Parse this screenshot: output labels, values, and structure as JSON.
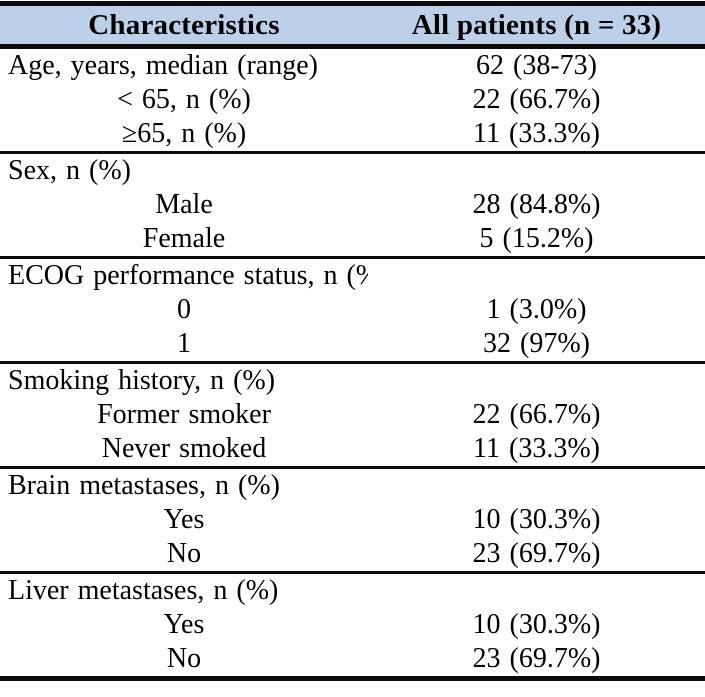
{
  "colors": {
    "header_bg": "#bdd0ea",
    "rule_color": "#0b0b0b",
    "text_color": "#000000",
    "page_bg": "#ffffff"
  },
  "table": {
    "header": {
      "col1": "Characteristics",
      "col2": "All patients (n = 33)"
    },
    "sections": [
      {
        "rows": [
          {
            "label": "Age, years, median (range)",
            "align": "left",
            "value": "62 (38-73)"
          },
          {
            "label": "< 65, n (%)",
            "align": "center",
            "value": "22 (66.7%)"
          },
          {
            "label": "≥65, n (%)",
            "align": "center",
            "value": "11 (33.3%)"
          }
        ]
      },
      {
        "rows": [
          {
            "label": "Sex, n (%)",
            "align": "left",
            "value": ""
          },
          {
            "label": "Male",
            "align": "center",
            "value": "28 (84.8%)"
          },
          {
            "label": "Female",
            "align": "center",
            "value": "5 (15.2%)"
          }
        ]
      },
      {
        "rows": [
          {
            "label": "ECOG performance status, n (%)",
            "align": "left",
            "value": ""
          },
          {
            "label": "0",
            "align": "center",
            "value": "1 (3.0%)"
          },
          {
            "label": "1",
            "align": "center",
            "value": "32 (97%)"
          }
        ]
      },
      {
        "rows": [
          {
            "label": "Smoking history, n (%)",
            "align": "left",
            "value": ""
          },
          {
            "label": "Former smoker",
            "align": "center",
            "value": "22 (66.7%)"
          },
          {
            "label": "Never smoked",
            "align": "center",
            "value": "11 (33.3%)"
          }
        ]
      },
      {
        "rows": [
          {
            "label": "Brain metastases, n (%)",
            "align": "left",
            "value": ""
          },
          {
            "label": "Yes",
            "align": "center",
            "value": "10 (30.3%)"
          },
          {
            "label": "No",
            "align": "center",
            "value": "23 (69.7%)"
          }
        ]
      },
      {
        "rows": [
          {
            "label": "Liver metastases, n (%)",
            "align": "left",
            "value": ""
          },
          {
            "label": "Yes",
            "align": "center",
            "value": "10 (30.3%)"
          },
          {
            "label": "No",
            "align": "center",
            "value": "23 (69.7%)"
          }
        ]
      }
    ]
  }
}
